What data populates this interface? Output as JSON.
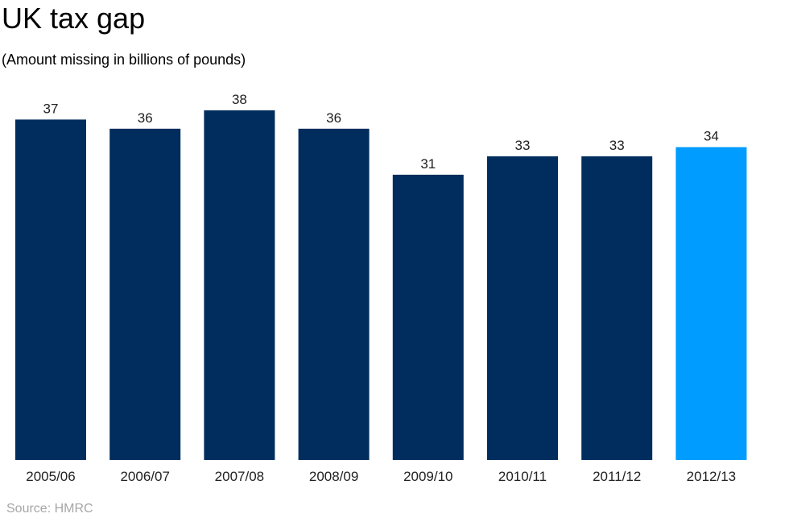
{
  "chart_data": {
    "type": "bar",
    "title": "UK tax gap",
    "subtitle": "(Amount missing in billions of pounds)",
    "categories": [
      "2005/06",
      "2006/07",
      "2007/08",
      "2008/09",
      "2009/10",
      "2010/11",
      "2011/12",
      "2012/13"
    ],
    "values": [
      37,
      36,
      38,
      36,
      31,
      33,
      33,
      34
    ],
    "data_labels": [
      "37",
      "36",
      "38",
      "36",
      "31",
      "33",
      "33",
      "34"
    ],
    "ylim": [
      0,
      38
    ],
    "grid": false,
    "source": "Source: HMRC",
    "colors": {
      "bar": "#002d5e",
      "highlight": "#009cff",
      "highlight_index": 7,
      "source_text": "#a6a6a6"
    }
  }
}
